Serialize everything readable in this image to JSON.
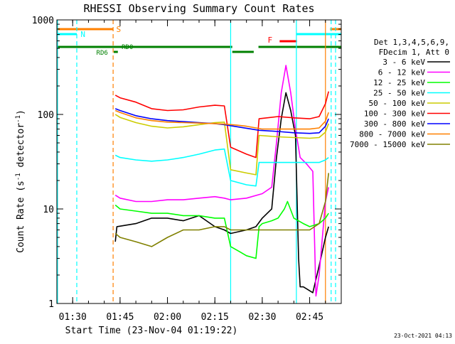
{
  "chart_data": {
    "type": "line",
    "title": "RHESSI Observing Summary Count Rates",
    "xlabel": "Start Time (23-Nov-04 01:19:22)",
    "ylabel_main": "Count Rate (s",
    "ylabel_sup": "-1",
    "ylabel_mid": " detector",
    "ylabel_sup2": "-1",
    "ylabel_end": ")",
    "yscale": "log",
    "ylim": [
      1,
      1000
    ],
    "xlim_minutes": [
      85.0,
      175.0
    ],
    "x_ticks": [
      {
        "label": "01:30",
        "minutes": 90
      },
      {
        "label": "01:45",
        "minutes": 105
      },
      {
        "label": "02:00",
        "minutes": 120
      },
      {
        "label": "02:15",
        "minutes": 135
      },
      {
        "label": "02:30",
        "minutes": 150
      },
      {
        "label": "02:45",
        "minutes": 165
      }
    ],
    "y_ticks": [
      {
        "label": "1",
        "value": 1
      },
      {
        "label": "10",
        "value": 10
      },
      {
        "label": "100",
        "value": 100
      },
      {
        "label": "1000",
        "value": 1000
      }
    ],
    "legend_header": [
      "Det 1,3,4,5,6,9,",
      "FDecim 1, Att 0"
    ],
    "legend_placement": "right",
    "footer_date": "23-Oct-2021 04:13",
    "series": [
      {
        "name": "3 - 6 keV",
        "color": "#000000",
        "points": [
          [
            103.5,
            4.5
          ],
          [
            104,
            6.5
          ],
          [
            110,
            7
          ],
          [
            115,
            8
          ],
          [
            120,
            8
          ],
          [
            125,
            7.5
          ],
          [
            130,
            8.5
          ],
          [
            135,
            6.5
          ],
          [
            138,
            6
          ],
          [
            140,
            5.5
          ],
          [
            145,
            6
          ],
          [
            148,
            6.5
          ],
          [
            150,
            8
          ],
          [
            153,
            10
          ],
          [
            154.5,
            35
          ],
          [
            156,
            90
          ],
          [
            157.5,
            170
          ],
          [
            159,
            110
          ],
          [
            160.5,
            60
          ],
          [
            161.5,
            3
          ],
          [
            162,
            1.5
          ],
          [
            163,
            1.5
          ],
          [
            166,
            1.3
          ],
          [
            168,
            2.5
          ],
          [
            170,
            5
          ],
          [
            171,
            6.5
          ]
        ]
      },
      {
        "name": "6 - 12 keV",
        "color": "#ff00ff",
        "points": [
          [
            103.5,
            14
          ],
          [
            105,
            13
          ],
          [
            110,
            12
          ],
          [
            115,
            12
          ],
          [
            120,
            12.5
          ],
          [
            125,
            12.5
          ],
          [
            130,
            13
          ],
          [
            135,
            13.5
          ],
          [
            138,
            13
          ],
          [
            140,
            12.5
          ],
          [
            145,
            13
          ],
          [
            150,
            14.5
          ],
          [
            153,
            17
          ],
          [
            154.5,
            50
          ],
          [
            156,
            170
          ],
          [
            157.5,
            330
          ],
          [
            159,
            170
          ],
          [
            160.5,
            70
          ],
          [
            162,
            35
          ],
          [
            164,
            30
          ],
          [
            166,
            25
          ],
          [
            167,
            1.2
          ],
          [
            168,
            2
          ],
          [
            170,
            12
          ],
          [
            171,
            17
          ]
        ]
      },
      {
        "name": "12 - 25 keV",
        "color": "#00ff00",
        "points": [
          [
            103.5,
            11
          ],
          [
            105,
            10
          ],
          [
            110,
            9.5
          ],
          [
            115,
            9
          ],
          [
            120,
            9
          ],
          [
            125,
            8.5
          ],
          [
            130,
            8.5
          ],
          [
            135,
            8
          ],
          [
            138,
            8
          ],
          [
            140,
            4
          ],
          [
            143,
            3.5
          ],
          [
            145,
            3.2
          ],
          [
            148,
            3
          ],
          [
            149,
            6.5
          ],
          [
            150,
            7
          ],
          [
            153,
            7.5
          ],
          [
            155,
            8
          ],
          [
            157,
            10
          ],
          [
            158,
            12
          ],
          [
            160,
            8
          ],
          [
            163,
            7
          ],
          [
            165,
            6.5
          ],
          [
            168,
            7
          ],
          [
            170,
            8
          ],
          [
            171,
            9
          ]
        ]
      },
      {
        "name": "25 - 50 keV",
        "color": "#00ffff",
        "points": [
          [
            103.5,
            37
          ],
          [
            105,
            35
          ],
          [
            110,
            33
          ],
          [
            115,
            32
          ],
          [
            120,
            33
          ],
          [
            125,
            35
          ],
          [
            130,
            38
          ],
          [
            135,
            42
          ],
          [
            138,
            43
          ],
          [
            140,
            20
          ],
          [
            145,
            18
          ],
          [
            148,
            17.5
          ],
          [
            149,
            31
          ],
          [
            155,
            31
          ],
          [
            160,
            31
          ],
          [
            165,
            31
          ],
          [
            168,
            31
          ],
          [
            170,
            33
          ],
          [
            171,
            35
          ]
        ]
      },
      {
        "name": "50 - 100 keV",
        "color": "#cccc00",
        "points": [
          [
            103.5,
            100
          ],
          [
            105,
            93
          ],
          [
            110,
            82
          ],
          [
            115,
            75
          ],
          [
            120,
            72
          ],
          [
            125,
            74
          ],
          [
            130,
            78
          ],
          [
            135,
            82
          ],
          [
            138,
            83
          ],
          [
            140,
            26
          ],
          [
            145,
            24
          ],
          [
            148,
            23
          ],
          [
            149,
            60
          ],
          [
            155,
            58
          ],
          [
            160,
            57
          ],
          [
            165,
            56
          ],
          [
            168,
            57
          ],
          [
            170,
            65
          ],
          [
            171,
            80
          ]
        ]
      },
      {
        "name": "100 - 300 keV",
        "color": "#ff0000",
        "points": [
          [
            103.5,
            160
          ],
          [
            105,
            150
          ],
          [
            110,
            135
          ],
          [
            115,
            115
          ],
          [
            120,
            110
          ],
          [
            125,
            112
          ],
          [
            130,
            120
          ],
          [
            135,
            125
          ],
          [
            138,
            123
          ],
          [
            140,
            45
          ],
          [
            145,
            38
          ],
          [
            148,
            35
          ],
          [
            149,
            90
          ],
          [
            155,
            95
          ],
          [
            160,
            92
          ],
          [
            165,
            90
          ],
          [
            168,
            95
          ],
          [
            170,
            130
          ],
          [
            171,
            175
          ]
        ]
      },
      {
        "name": "300 - 800 keV",
        "color": "#0000ff",
        "points": [
          [
            103.5,
            115
          ],
          [
            105,
            110
          ],
          [
            110,
            97
          ],
          [
            115,
            90
          ],
          [
            120,
            86
          ],
          [
            125,
            84
          ],
          [
            130,
            82
          ],
          [
            135,
            80
          ],
          [
            138,
            78
          ],
          [
            149,
            68
          ],
          [
            155,
            66
          ],
          [
            160,
            64
          ],
          [
            165,
            63
          ],
          [
            168,
            64
          ],
          [
            170,
            75
          ],
          [
            171,
            90
          ]
        ]
      },
      {
        "name": "800 - 7000 keV",
        "color": "#ff8000",
        "points": [
          [
            103.5,
            110
          ],
          [
            105,
            105
          ],
          [
            110,
            92
          ],
          [
            115,
            86
          ],
          [
            120,
            83
          ],
          [
            125,
            82
          ],
          [
            130,
            81
          ],
          [
            135,
            80
          ],
          [
            138,
            79
          ],
          [
            142,
            77
          ],
          [
            145,
            75
          ],
          [
            148,
            72
          ],
          [
            150,
            70
          ],
          [
            155,
            70
          ],
          [
            160,
            70
          ],
          [
            165,
            70
          ],
          [
            168,
            72
          ],
          [
            170,
            85
          ],
          [
            171,
            105
          ]
        ]
      },
      {
        "name": "7000 - 15000 keV",
        "color": "#808000",
        "points": [
          [
            103.5,
            5.5
          ],
          [
            105,
            5
          ],
          [
            110,
            4.5
          ],
          [
            115,
            4
          ],
          [
            120,
            5
          ],
          [
            125,
            6
          ],
          [
            130,
            6
          ],
          [
            135,
            6.5
          ],
          [
            138,
            6.5
          ],
          [
            140,
            6
          ],
          [
            145,
            6
          ],
          [
            150,
            6
          ],
          [
            155,
            6
          ],
          [
            160,
            6
          ],
          [
            165,
            6
          ],
          [
            168,
            7
          ],
          [
            170,
            12
          ],
          [
            171,
            24
          ]
        ]
      }
    ],
    "vertical_lines": [
      {
        "minutes": 85.2,
        "color": "#00ffff",
        "style": "solid"
      },
      {
        "minutes": 91.3,
        "color": "#00ffff",
        "style": "dashed"
      },
      {
        "minutes": 102.8,
        "color": "#ff8000",
        "style": "dashed"
      },
      {
        "minutes": 140.0,
        "color": "#00ffff",
        "style": "solid"
      },
      {
        "minutes": 160.8,
        "color": "#00ffff",
        "style": "solid"
      },
      {
        "minutes": 170.0,
        "color": "#ff8000",
        "style": "solid"
      },
      {
        "minutes": 171.8,
        "color": "#00ffff",
        "style": "dashed"
      },
      {
        "minutes": 173.2,
        "color": "#00ffff",
        "style": "dashed"
      }
    ],
    "flag_bars": [
      {
        "label": "S",
        "color": "#ff8000",
        "start": 85.0,
        "end": 102.8,
        "label_at": 103.8,
        "row": "S"
      },
      {
        "label": "",
        "color": "#ff8000",
        "start": 171.5,
        "end": 175.0,
        "row": "S"
      },
      {
        "label": "N",
        "color": "#00ffff",
        "start": 85.0,
        "end": 91.3,
        "label_at": 92.5,
        "row": "N"
      },
      {
        "label": "",
        "color": "#00ffff",
        "start": 160.8,
        "end": 175.0,
        "row": "N"
      },
      {
        "label": "F",
        "color": "#ff0000",
        "start": 155.5,
        "end": 161.0,
        "label_at": 151.7,
        "row": "F"
      },
      {
        "label": "RD0",
        "color": "#008000",
        "start": 85.0,
        "end": 140.5,
        "label_at": 105.5,
        "row": "RD0"
      },
      {
        "label": "",
        "color": "#008000",
        "start": 148.8,
        "end": 175.0,
        "row": "RD0"
      },
      {
        "label": "RD6",
        "color": "#008000",
        "start": 103.0,
        "end": 104.3,
        "label_at": 97.5,
        "row": "RD6"
      },
      {
        "label": "",
        "color": "#008000",
        "start": 140.5,
        "end": 147.3,
        "row": "RD6"
      }
    ]
  }
}
